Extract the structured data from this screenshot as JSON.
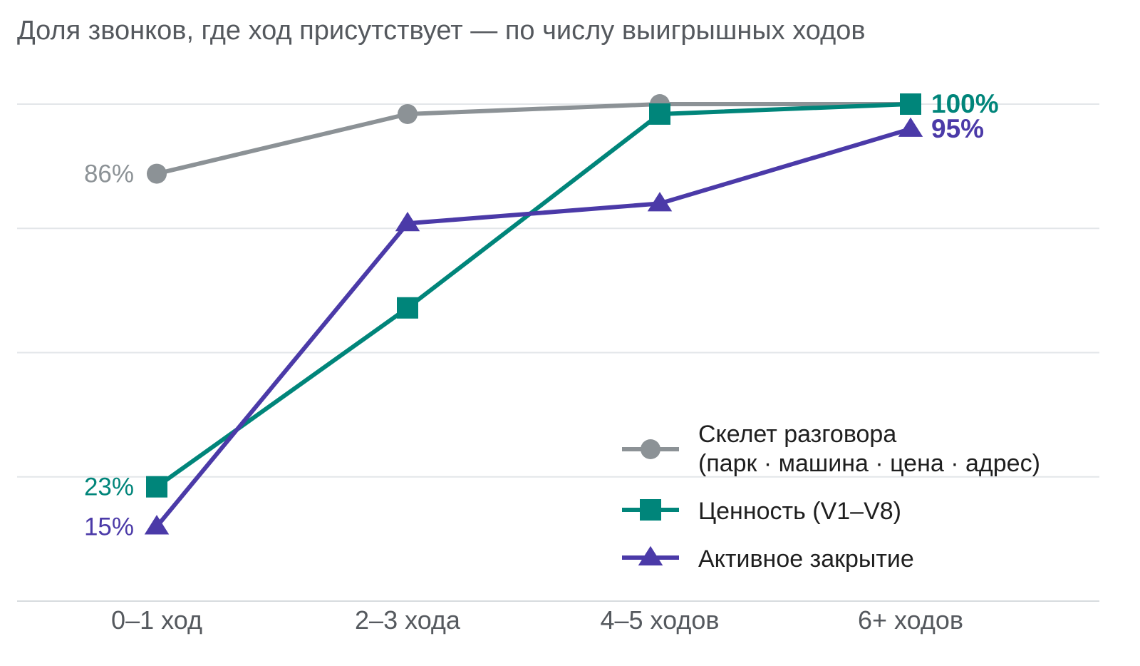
{
  "chart_data": {
    "type": "line",
    "title": "Доля звонков, где ход присутствует — по числу выигрышных ходов",
    "xlabel": "",
    "ylabel": "",
    "categories": [
      "0–1 ход",
      "2–3 хода",
      "4–5 ходов",
      "6+ ходов"
    ],
    "ylim": [
      0,
      100
    ],
    "y_ticks_shown": false,
    "grid": "horizontal",
    "legend_position": "bottom-right",
    "series": [
      {
        "name": "Скелет разговора",
        "name_line2": "(парк · машина · цена · адрес)",
        "marker": "circle",
        "color": "#8c9296",
        "values": [
          86,
          98,
          100,
          100
        ],
        "start_label": "86%"
      },
      {
        "name": "Ценность (V1–V8)",
        "marker": "square",
        "color": "#00857a",
        "values": [
          23,
          59,
          98,
          100
        ],
        "start_label": "23%",
        "end_label": "100%"
      },
      {
        "name": "Активное закрытие",
        "marker": "triangle",
        "color": "#4b3aa8",
        "values": [
          15,
          76,
          80,
          95
        ],
        "start_label": "15%",
        "end_label": "95%"
      }
    ]
  }
}
